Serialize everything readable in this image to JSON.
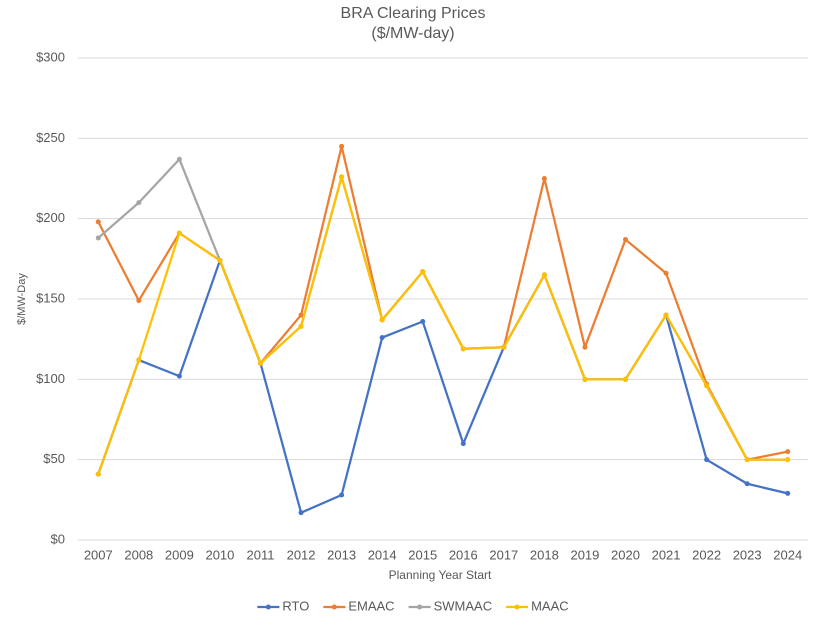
{
  "chart_data": {
    "type": "line",
    "title": "BRA Clearing Prices",
    "subtitle": "($/MW-day)",
    "x_label": "Planning Year Start",
    "y_label": "$/MW-Day",
    "categories": [
      "2007",
      "2008",
      "2009",
      "2010",
      "2011",
      "2012",
      "2013",
      "2014",
      "2015",
      "2016",
      "2017",
      "2018",
      "2019",
      "2020",
      "2021",
      "2022",
      "2023",
      "2024"
    ],
    "series": [
      {
        "name": "RTO",
        "color": "#4472c4",
        "values": [
          41,
          112,
          102,
          174,
          110,
          17,
          28,
          126,
          136,
          60,
          120,
          165,
          100,
          100,
          140,
          50,
          35,
          29
        ]
      },
      {
        "name": "EMAAC",
        "color": "#ed7d31",
        "values": [
          198,
          149,
          191,
          174,
          110,
          140,
          245,
          137,
          167,
          119,
          120,
          225,
          120,
          187,
          166,
          97,
          50,
          55
        ]
      },
      {
        "name": "SWMAAC",
        "color": "#a5a5a5",
        "values": [
          188,
          210,
          237,
          174,
          110,
          133,
          226,
          137,
          167,
          119,
          120,
          165,
          100,
          100,
          140,
          96,
          50,
          50
        ]
      },
      {
        "name": "MAAC",
        "color": "#ffc000",
        "values": [
          41,
          112,
          191,
          174,
          110,
          133,
          226,
          137,
          167,
          119,
          120,
          165,
          100,
          100,
          140,
          96,
          50,
          50
        ]
      }
    ],
    "ylim": [
      0,
      300
    ],
    "yticks": [
      {
        "value": 0,
        "label": "$0"
      },
      {
        "value": 50,
        "label": "$50"
      },
      {
        "value": 100,
        "label": "$100"
      },
      {
        "value": 150,
        "label": "$150"
      },
      {
        "value": 200,
        "label": "$200"
      },
      {
        "value": 250,
        "label": "$250"
      },
      {
        "value": 300,
        "label": "$300"
      }
    ],
    "grid": true,
    "legend": "bottom"
  }
}
